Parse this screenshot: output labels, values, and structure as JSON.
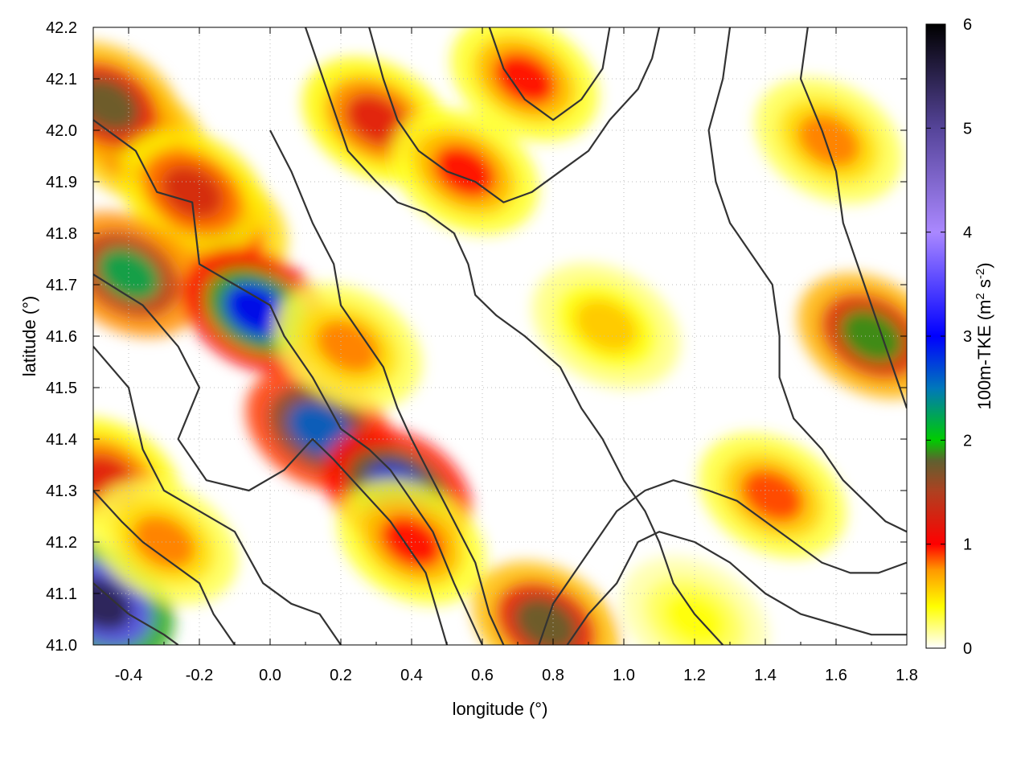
{
  "chart_data": {
    "type": "heatmap",
    "title": "",
    "xlabel": "longitude (°)",
    "ylabel": "latitude (°)",
    "colorbar_label": "100m-TKE (m² s⁻²)",
    "colorbar_label_parts": {
      "main": "100m-TKE (m",
      "sup1": "2",
      "mid": " s",
      "sup2": "-2",
      "end": ")"
    },
    "xlim": [
      -0.5,
      1.8
    ],
    "ylim": [
      41.0,
      42.2
    ],
    "clim": [
      0,
      6
    ],
    "x_ticks": [
      "-0.4",
      "-0.2",
      "0.0",
      "0.2",
      "0.4",
      "0.6",
      "0.8",
      "1.0",
      "1.2",
      "1.4",
      "1.6",
      "1.8"
    ],
    "x_tick_values": [
      -0.4,
      -0.2,
      0.0,
      0.2,
      0.4,
      0.6,
      0.8,
      1.0,
      1.2,
      1.4,
      1.6,
      1.8
    ],
    "y_ticks": [
      "41.0",
      "41.1",
      "41.2",
      "41.3",
      "41.4",
      "41.5",
      "41.6",
      "41.7",
      "41.8",
      "41.9",
      "42.0",
      "42.1",
      "42.2"
    ],
    "y_tick_values": [
      41.0,
      41.1,
      41.2,
      41.3,
      41.4,
      41.5,
      41.6,
      41.7,
      41.8,
      41.9,
      42.0,
      42.1,
      42.2
    ],
    "colorbar_ticks": [
      "0",
      "1",
      "2",
      "3",
      "4",
      "5",
      "6"
    ],
    "colorbar_tick_values": [
      0,
      1,
      2,
      3,
      4,
      5,
      6
    ],
    "grid": true,
    "colormap": [
      {
        "v": 0.0,
        "color": "#ffffff"
      },
      {
        "v": 0.4,
        "color": "#ffff00"
      },
      {
        "v": 0.75,
        "color": "#ff9900"
      },
      {
        "v": 1.0,
        "color": "#ff0000"
      },
      {
        "v": 1.5,
        "color": "#b04020"
      },
      {
        "v": 1.8,
        "color": "#606030"
      },
      {
        "v": 2.0,
        "color": "#00cc00"
      },
      {
        "v": 2.5,
        "color": "#0077bb"
      },
      {
        "v": 3.0,
        "color": "#0000ff"
      },
      {
        "v": 4.0,
        "color": "#aa88ff"
      },
      {
        "v": 5.0,
        "color": "#554499"
      },
      {
        "v": 6.0,
        "color": "#000000"
      }
    ],
    "tke_hotspots": [
      {
        "lon": -0.38,
        "lat": 41.98,
        "tke": 1.6
      },
      {
        "lon": -0.46,
        "lat": 42.05,
        "tke": 1.8
      },
      {
        "lon": -0.16,
        "lat": 41.82,
        "tke": 1.5
      },
      {
        "lon": -0.22,
        "lat": 41.88,
        "tke": 1.3
      },
      {
        "lon": -0.4,
        "lat": 41.72,
        "tke": 2.2
      },
      {
        "lon": -0.04,
        "lat": 41.65,
        "tke": 3.0
      },
      {
        "lon": 0.14,
        "lat": 41.42,
        "tke": 2.6
      },
      {
        "lon": 0.36,
        "lat": 41.3,
        "tke": 2.8
      },
      {
        "lon": 0.3,
        "lat": 42.02,
        "tke": 1.2
      },
      {
        "lon": 0.55,
        "lat": 41.92,
        "tke": 1.0
      },
      {
        "lon": -0.46,
        "lat": 41.32,
        "tke": 1.2
      },
      {
        "lon": -0.48,
        "lat": 41.08,
        "tke": 5.5
      },
      {
        "lon": 0.78,
        "lat": 41.04,
        "tke": 1.8
      },
      {
        "lon": 0.4,
        "lat": 41.2,
        "tke": 1.0
      },
      {
        "lon": 1.58,
        "lat": 41.98,
        "tke": 0.8
      },
      {
        "lon": 1.42,
        "lat": 41.29,
        "tke": 0.9
      },
      {
        "lon": 1.7,
        "lat": 41.6,
        "tke": 1.9
      },
      {
        "lon": 0.72,
        "lat": 42.1,
        "tke": 1.0
      },
      {
        "lon": 0.22,
        "lat": 41.58,
        "tke": 0.8
      },
      {
        "lon": -0.3,
        "lat": 41.2,
        "tke": 0.8
      },
      {
        "lon": 1.2,
        "lat": 41.05,
        "tke": 0.4
      },
      {
        "lon": 0.95,
        "lat": 41.62,
        "tke": 0.6
      }
    ],
    "elevation_contours": [
      {
        "name": "",
        "points": [
          [
            -0.5,
            42.02
          ],
          [
            -0.38,
            41.96
          ],
          [
            -0.32,
            41.88
          ],
          [
            -0.22,
            41.86
          ],
          [
            -0.2,
            41.74
          ],
          [
            -0.1,
            41.7
          ],
          [
            0.0,
            41.66
          ],
          [
            0.04,
            41.6
          ],
          [
            0.12,
            41.52
          ],
          [
            0.2,
            41.42
          ],
          [
            0.28,
            41.38
          ],
          [
            0.34,
            41.34
          ],
          [
            0.4,
            41.28
          ],
          [
            0.46,
            41.22
          ],
          [
            0.52,
            41.12
          ],
          [
            0.6,
            41.0
          ]
        ]
      },
      {
        "name": "",
        "points": [
          [
            -0.5,
            41.72
          ],
          [
            -0.36,
            41.66
          ],
          [
            -0.26,
            41.58
          ],
          [
            -0.2,
            41.5
          ],
          [
            -0.26,
            41.4
          ],
          [
            -0.18,
            41.32
          ],
          [
            -0.06,
            41.3
          ],
          [
            0.04,
            41.34
          ],
          [
            0.12,
            41.4
          ],
          [
            0.18,
            41.36
          ],
          [
            0.26,
            41.3
          ],
          [
            0.34,
            41.24
          ],
          [
            0.44,
            41.14
          ],
          [
            0.5,
            41.0
          ]
        ]
      },
      {
        "name": "",
        "points": [
          [
            -0.5,
            41.58
          ],
          [
            -0.4,
            41.5
          ],
          [
            -0.36,
            41.38
          ],
          [
            -0.3,
            41.3
          ],
          [
            -0.2,
            41.26
          ],
          [
            -0.1,
            41.22
          ],
          [
            -0.02,
            41.12
          ],
          [
            0.06,
            41.08
          ],
          [
            0.14,
            41.06
          ],
          [
            0.2,
            41.0
          ]
        ]
      },
      {
        "name": "",
        "points": [
          [
            -0.5,
            41.3
          ],
          [
            -0.42,
            41.24
          ],
          [
            -0.36,
            41.2
          ],
          [
            -0.28,
            41.16
          ],
          [
            -0.2,
            41.12
          ],
          [
            -0.16,
            41.06
          ],
          [
            -0.1,
            41.0
          ]
        ]
      },
      {
        "name": "",
        "points": [
          [
            -0.5,
            41.12
          ],
          [
            -0.4,
            41.06
          ],
          [
            -0.3,
            41.02
          ],
          [
            -0.26,
            41.0
          ]
        ]
      },
      {
        "name": "",
        "points": [
          [
            0.1,
            42.2
          ],
          [
            0.16,
            42.08
          ],
          [
            0.22,
            41.96
          ],
          [
            0.3,
            41.9
          ],
          [
            0.36,
            41.86
          ],
          [
            0.44,
            41.84
          ],
          [
            0.52,
            41.8
          ],
          [
            0.56,
            41.74
          ],
          [
            0.58,
            41.68
          ],
          [
            0.64,
            41.64
          ],
          [
            0.72,
            41.6
          ],
          [
            0.82,
            41.54
          ],
          [
            0.88,
            41.46
          ],
          [
            0.94,
            41.4
          ],
          [
            1.0,
            41.32
          ],
          [
            1.06,
            41.26
          ],
          [
            1.1,
            41.2
          ],
          [
            1.14,
            41.12
          ],
          [
            1.2,
            41.06
          ],
          [
            1.28,
            41.0
          ]
        ]
      },
      {
        "name": "",
        "points": [
          [
            0.28,
            42.2
          ],
          [
            0.32,
            42.1
          ],
          [
            0.36,
            42.02
          ],
          [
            0.42,
            41.96
          ],
          [
            0.5,
            41.92
          ],
          [
            0.58,
            41.9
          ],
          [
            0.66,
            41.86
          ],
          [
            0.74,
            41.88
          ],
          [
            0.82,
            41.92
          ],
          [
            0.9,
            41.96
          ],
          [
            0.96,
            42.02
          ],
          [
            1.04,
            42.08
          ],
          [
            1.08,
            42.14
          ],
          [
            1.1,
            42.2
          ]
        ]
      },
      {
        "name": "",
        "points": [
          [
            0.62,
            42.2
          ],
          [
            0.66,
            42.12
          ],
          [
            0.72,
            42.06
          ],
          [
            0.8,
            42.02
          ],
          [
            0.88,
            42.06
          ],
          [
            0.94,
            42.12
          ],
          [
            0.96,
            42.2
          ]
        ]
      },
      {
        "name": "",
        "points": [
          [
            1.3,
            42.2
          ],
          [
            1.28,
            42.1
          ],
          [
            1.24,
            42.0
          ],
          [
            1.26,
            41.9
          ],
          [
            1.3,
            41.82
          ],
          [
            1.36,
            41.76
          ],
          [
            1.42,
            41.7
          ],
          [
            1.44,
            41.6
          ],
          [
            1.44,
            41.52
          ],
          [
            1.48,
            41.44
          ],
          [
            1.56,
            41.38
          ],
          [
            1.62,
            41.32
          ],
          [
            1.68,
            41.28
          ],
          [
            1.74,
            41.24
          ],
          [
            1.8,
            41.22
          ]
        ]
      },
      {
        "name": "",
        "points": [
          [
            1.52,
            42.2
          ],
          [
            1.5,
            42.1
          ],
          [
            1.56,
            42.0
          ],
          [
            1.6,
            41.92
          ],
          [
            1.62,
            41.82
          ],
          [
            1.66,
            41.74
          ],
          [
            1.7,
            41.66
          ],
          [
            1.74,
            41.58
          ],
          [
            1.78,
            41.5
          ],
          [
            1.8,
            41.46
          ]
        ]
      },
      {
        "name": "",
        "points": [
          [
            0.76,
            41.0
          ],
          [
            0.8,
            41.08
          ],
          [
            0.86,
            41.14
          ],
          [
            0.92,
            41.2
          ],
          [
            0.98,
            41.26
          ],
          [
            1.06,
            41.3
          ],
          [
            1.14,
            41.32
          ],
          [
            1.24,
            41.3
          ],
          [
            1.32,
            41.28
          ],
          [
            1.4,
            41.24
          ],
          [
            1.48,
            41.2
          ],
          [
            1.56,
            41.16
          ],
          [
            1.64,
            41.14
          ],
          [
            1.72,
            41.14
          ],
          [
            1.8,
            41.16
          ]
        ]
      },
      {
        "name": "",
        "points": [
          [
            0.84,
            41.0
          ],
          [
            0.9,
            41.06
          ],
          [
            0.98,
            41.12
          ],
          [
            1.04,
            41.2
          ],
          [
            1.1,
            41.22
          ],
          [
            1.2,
            41.2
          ],
          [
            1.3,
            41.16
          ],
          [
            1.4,
            41.1
          ],
          [
            1.5,
            41.06
          ],
          [
            1.6,
            41.04
          ],
          [
            1.7,
            41.02
          ],
          [
            1.8,
            41.02
          ]
        ]
      },
      {
        "name": "",
        "points": [
          [
            0.0,
            42.0
          ],
          [
            0.06,
            41.92
          ],
          [
            0.12,
            41.82
          ],
          [
            0.18,
            41.74
          ],
          [
            0.2,
            41.66
          ],
          [
            0.26,
            41.6
          ],
          [
            0.32,
            41.54
          ],
          [
            0.36,
            41.46
          ],
          [
            0.4,
            41.4
          ],
          [
            0.46,
            41.32
          ],
          [
            0.52,
            41.24
          ],
          [
            0.58,
            41.16
          ],
          [
            0.62,
            41.06
          ],
          [
            0.66,
            41.0
          ]
        ]
      }
    ]
  }
}
